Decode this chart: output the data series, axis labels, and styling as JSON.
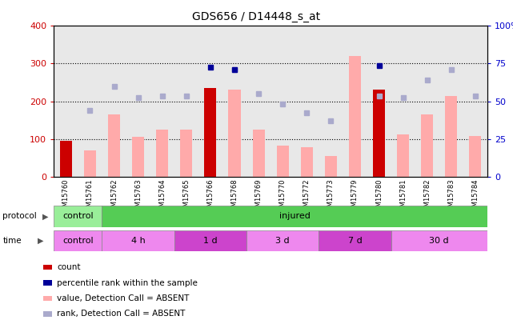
{
  "title": "GDS656 / D14448_s_at",
  "samples": [
    "GSM15760",
    "GSM15761",
    "GSM15762",
    "GSM15763",
    "GSM15764",
    "GSM15765",
    "GSM15766",
    "GSM15768",
    "GSM15769",
    "GSM15770",
    "GSM15772",
    "GSM15773",
    "GSM15779",
    "GSM15780",
    "GSM15781",
    "GSM15782",
    "GSM15783",
    "GSM15784"
  ],
  "bar_values": [
    95,
    70,
    165,
    105,
    125,
    125,
    235,
    230,
    125,
    82,
    78,
    55,
    320,
    230,
    112,
    165,
    215,
    108
  ],
  "bar_colors": [
    "#cc0000",
    "#ffaaaa",
    "#ffaaaa",
    "#ffaaaa",
    "#ffaaaa",
    "#ffaaaa",
    "#cc0000",
    "#ffaaaa",
    "#ffaaaa",
    "#ffaaaa",
    "#ffaaaa",
    "#ffaaaa",
    "#ffaaaa",
    "#cc0000",
    "#ffaaaa",
    "#ffaaaa",
    "#ffaaaa",
    "#ffaaaa"
  ],
  "rank_values": [
    null,
    175,
    240,
    210,
    215,
    215,
    null,
    285,
    220,
    192,
    170,
    148,
    null,
    215,
    210,
    257,
    285,
    215
  ],
  "pct_values": [
    null,
    null,
    null,
    null,
    null,
    null,
    290,
    285,
    null,
    null,
    null,
    null,
    null,
    295,
    null,
    null,
    null,
    null
  ],
  "ylim_left": [
    0,
    400
  ],
  "yticks_left": [
    0,
    100,
    200,
    300,
    400
  ],
  "yticks_right": [
    0,
    25,
    50,
    75,
    100
  ],
  "grid_values": [
    100,
    200,
    300
  ],
  "protocol_groups": [
    {
      "label": "control",
      "start": 0,
      "end": 2,
      "color": "#99ee99"
    },
    {
      "label": "injured",
      "start": 2,
      "end": 18,
      "color": "#55cc55"
    }
  ],
  "time_groups": [
    {
      "label": "control",
      "start": 0,
      "end": 2,
      "color": "#ee88ee"
    },
    {
      "label": "4 h",
      "start": 2,
      "end": 5,
      "color": "#ee88ee"
    },
    {
      "label": "1 d",
      "start": 5,
      "end": 8,
      "color": "#cc44cc"
    },
    {
      "label": "3 d",
      "start": 8,
      "end": 11,
      "color": "#ee88ee"
    },
    {
      "label": "7 d",
      "start": 11,
      "end": 14,
      "color": "#cc44cc"
    },
    {
      "label": "30 d",
      "start": 14,
      "end": 18,
      "color": "#ee88ee"
    }
  ],
  "legend_items": [
    {
      "color": "#cc0000",
      "label": "count"
    },
    {
      "color": "#000099",
      "label": "percentile rank within the sample"
    },
    {
      "color": "#ffaaaa",
      "label": "value, Detection Call = ABSENT"
    },
    {
      "color": "#aaaacc",
      "label": "rank, Detection Call = ABSENT"
    }
  ],
  "bg_color": "#ffffff",
  "plot_bg_color": "#e8e8e8",
  "title_fontsize": 10,
  "axis_color_left": "#cc0000",
  "axis_color_right": "#0000cc"
}
